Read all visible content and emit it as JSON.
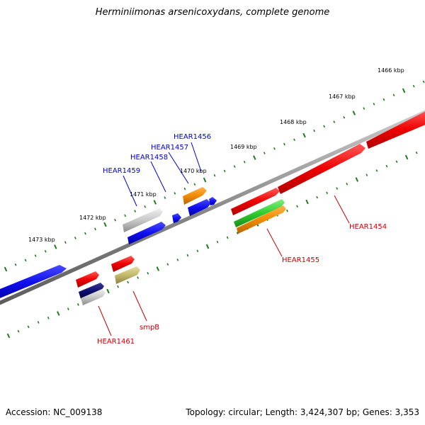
{
  "title": "Herminiimonas arsenicoxydans, complete genome",
  "footer": {
    "accession": "Accession: NC_009138",
    "info": "Topology: circular; Length: 3,424,307 bp; Genes: 3,353"
  },
  "colors": {
    "backbone": "#808080",
    "tick": "#1e7a1e",
    "label_blue": "#0000cc",
    "label_red": "#cc0000"
  },
  "ticks": [
    {
      "label": "1466 kbp"
    },
    {
      "label": "1467 kbp"
    },
    {
      "label": "1468 kbp"
    },
    {
      "label": "1469 kbp"
    },
    {
      "label": "1470 kbp"
    },
    {
      "label": "1471 kbp"
    },
    {
      "label": "1472 kbp"
    },
    {
      "label": "1473 kbp"
    }
  ],
  "genes": [
    {
      "id": "g1454",
      "label": "HEAR1454",
      "color": "red",
      "strand": "+"
    },
    {
      "id": "g1455",
      "label": "HEAR1455",
      "color": "red",
      "strand": "+"
    },
    {
      "id": "g1456",
      "label": "HEAR1456",
      "color": "orange",
      "strand": "+"
    },
    {
      "id": "g1457",
      "label": "HEAR1457",
      "color": "blue",
      "strand": "+"
    },
    {
      "id": "g1458",
      "label": "HEAR1458",
      "color": "blue",
      "strand": "+"
    },
    {
      "id": "g1459",
      "label": "HEAR1459",
      "color": "silver",
      "strand": "+"
    },
    {
      "id": "gsmpB",
      "label": "smpB",
      "color": "olive",
      "strand": "-"
    },
    {
      "id": "g1461",
      "label": "HEAR1461",
      "color": "navy",
      "strand": "-"
    }
  ]
}
